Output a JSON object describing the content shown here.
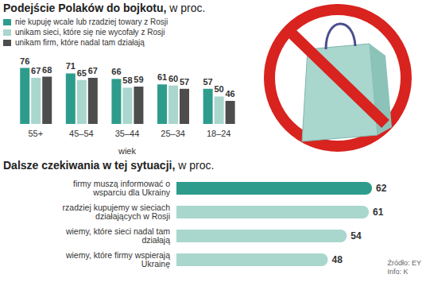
{
  "chart_data": [
    {
      "type": "bar",
      "title": "Podejście Polaków do bojkotu,",
      "subtitle": "w proc.",
      "x_label": "wiek",
      "categories": [
        "55+",
        "45–54",
        "35–44",
        "25–34",
        "18–24"
      ],
      "series": [
        {
          "name": "nie kupuję wcale lub rzadziej towary z Rosji",
          "color": "#2e9c8c",
          "values": [
            76,
            71,
            66,
            61,
            57
          ]
        },
        {
          "name": "unikam sieci, które się nie wycofały z Rosji",
          "color": "#a9d6cd",
          "values": [
            67,
            65,
            58,
            60,
            50
          ]
        },
        {
          "name": "unikam firm, które nadal tam działają",
          "color": "#4d4d4d",
          "values": [
            68,
            67,
            59,
            57,
            46
          ]
        }
      ],
      "ylim": [
        25,
        80
      ],
      "legend": "top-left",
      "data_labels": true,
      "tick_labels": "x",
      "grid": false
    },
    {
      "type": "bar",
      "orientation": "horizontal",
      "title": "Dalsze czekiwania w tej sytuacji,",
      "subtitle": "w proc.",
      "categories": [
        "firmy muszą informować o wsparciu dla Ukrainy",
        "rzadziej kupujemy w sieciach działających w Rosji",
        "wiemy, które sieci nadal tam działają",
        "wiemy, które firmy wspierają Ukrainę"
      ],
      "values": [
        62,
        61,
        54,
        48
      ],
      "colors": [
        "#2e9c8c",
        "#a9d6cd",
        "#a9d6cd",
        "#a9d6cd"
      ],
      "xlim": [
        0,
        65
      ],
      "data_labels": true,
      "tick_labels": "y",
      "grid": false,
      "annotations": [
        "Źródło: EY",
        "Info: K"
      ]
    }
  ]
}
